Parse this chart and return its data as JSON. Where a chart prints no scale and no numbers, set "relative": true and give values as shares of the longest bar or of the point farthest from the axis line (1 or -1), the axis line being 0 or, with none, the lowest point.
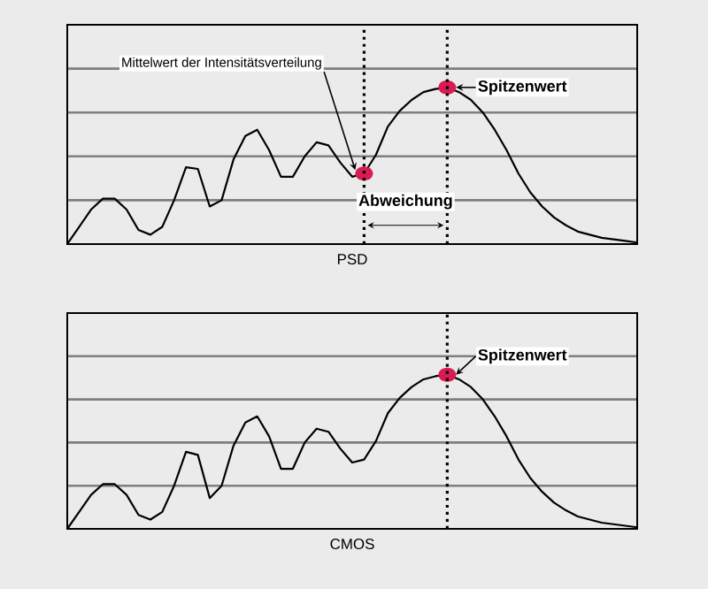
{
  "chart_data": [
    {
      "type": "line",
      "relative": true,
      "grid": "y",
      "xlabel": "PSD",
      "categories": [
        null,
        null,
        null,
        null,
        null,
        null,
        null,
        null,
        null,
        null,
        null,
        null,
        null,
        null,
        null,
        null,
        null,
        null,
        null,
        null,
        null,
        null,
        null,
        null,
        null,
        null,
        null,
        null,
        null,
        null,
        null,
        null,
        null,
        null,
        null,
        null,
        null,
        null,
        null,
        null,
        null,
        null,
        null,
        null,
        null,
        null,
        null,
        null,
        null
      ],
      "series": [
        {
          "color": "#000000",
          "values": [
            0,
            0.11,
            0.22,
            0.29,
            0.29,
            0.22,
            0.09,
            0.06,
            0.11,
            0.28,
            0.49,
            0.48,
            0.24,
            0.28,
            0.54,
            0.69,
            0.73,
            0.6,
            0.43,
            0.43,
            0.56,
            0.65,
            0.63,
            0.52,
            0.43,
            0.45,
            0.57,
            0.75,
            0.85,
            0.92,
            0.97,
            0.99,
            1,
            0.97,
            0.92,
            0.84,
            0.73,
            0.6,
            0.45,
            0.33,
            0.24,
            0.17,
            0.12,
            0.08,
            0.06,
            0.04,
            0.03,
            0.02,
            0.01
          ]
        }
      ],
      "annotations": [
        "Mittelwert der Intensitätsverteilung",
        "Spitzenwert",
        "Abweichung"
      ]
    },
    {
      "type": "line",
      "relative": true,
      "grid": "y",
      "xlabel": "CMOS",
      "categories": [
        null,
        null,
        null,
        null,
        null,
        null,
        null,
        null,
        null,
        null,
        null,
        null,
        null,
        null,
        null,
        null,
        null,
        null,
        null,
        null,
        null,
        null,
        null,
        null,
        null,
        null,
        null,
        null,
        null,
        null,
        null,
        null,
        null,
        null,
        null,
        null,
        null,
        null,
        null,
        null,
        null,
        null,
        null,
        null,
        null,
        null,
        null,
        null,
        null
      ],
      "series": [
        {
          "color": "#000000",
          "values": [
            0,
            0.11,
            0.22,
            0.29,
            0.29,
            0.22,
            0.09,
            0.06,
            0.11,
            0.28,
            0.5,
            0.48,
            0.2,
            0.28,
            0.54,
            0.69,
            0.73,
            0.6,
            0.39,
            0.39,
            0.56,
            0.65,
            0.63,
            0.52,
            0.43,
            0.45,
            0.57,
            0.75,
            0.85,
            0.92,
            0.97,
            0.99,
            1,
            0.97,
            0.92,
            0.84,
            0.73,
            0.6,
            0.45,
            0.33,
            0.24,
            0.17,
            0.12,
            0.08,
            0.06,
            0.04,
            0.03,
            0.02,
            0.01
          ]
        }
      ],
      "annotations": [
        "Spitzenwert"
      ]
    }
  ]
}
